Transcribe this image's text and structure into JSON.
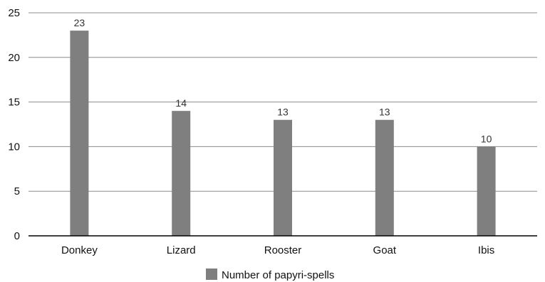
{
  "chart_data": {
    "type": "bar",
    "title": "",
    "xlabel": "",
    "ylabel": "",
    "categories": [
      "Donkey",
      "Lizard",
      "Rooster",
      "Goat",
      "Ibis"
    ],
    "series": [
      {
        "name": "Number of papyri-spells",
        "values": [
          23,
          14,
          13,
          13,
          10
        ]
      }
    ],
    "ylim": [
      0,
      25
    ],
    "yticks": [
      0,
      5,
      10,
      15,
      20,
      25
    ],
    "grid": true,
    "legend": "bottom-center",
    "data_labels": true,
    "colors": {
      "bar": "#7f7f7f",
      "grid": "#8c8c8c",
      "axis": "#000000"
    }
  }
}
